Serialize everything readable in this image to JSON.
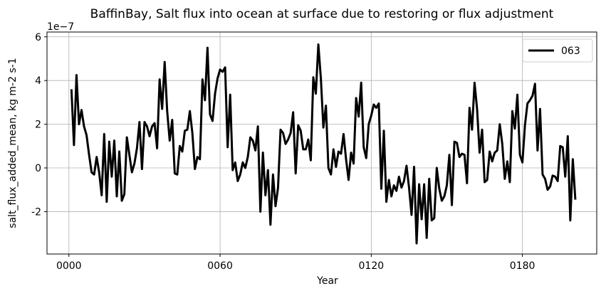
{
  "chart_data": {
    "type": "line",
    "title": "BaffinBay, Salt flux into ocean at surface due to restoring or flux adjustment",
    "xlabel": "Year",
    "ylabel": "salt_flux_added_mean, kg m-2 s-1",
    "offset_text": "1e−7",
    "x": [
      1,
      2,
      3,
      4,
      5,
      6,
      7,
      8,
      9,
      10,
      11,
      12,
      13,
      14,
      15,
      16,
      17,
      18,
      19,
      20,
      21,
      22,
      23,
      24,
      25,
      26,
      27,
      28,
      29,
      30,
      31,
      32,
      33,
      34,
      35,
      36,
      37,
      38,
      39,
      40,
      41,
      42,
      43,
      44,
      45,
      46,
      47,
      48,
      49,
      50,
      51,
      52,
      53,
      54,
      55,
      56,
      57,
      58,
      59,
      60,
      61,
      62,
      63,
      64,
      65,
      66,
      67,
      68,
      69,
      70,
      71,
      72,
      73,
      74,
      75,
      76,
      77,
      78,
      79,
      80,
      81,
      82,
      83,
      84,
      85,
      86,
      87,
      88,
      89,
      90,
      91,
      92,
      93,
      94,
      95,
      96,
      97,
      98,
      99,
      100,
      101,
      102,
      103,
      104,
      105,
      106,
      107,
      108,
      109,
      110,
      111,
      112,
      113,
      114,
      115,
      116,
      117,
      118,
      119,
      120,
      121,
      122,
      123,
      124,
      125,
      126,
      127,
      128,
      129,
      130,
      131,
      132,
      133,
      134,
      135,
      136,
      137,
      138,
      139,
      140,
      141,
      142,
      143,
      144,
      145,
      146,
      147,
      148,
      149,
      150,
      151,
      152,
      153,
      154,
      155,
      156,
      157,
      158,
      159,
      160,
      161,
      162,
      163,
      164,
      165,
      166,
      167,
      168,
      169,
      170,
      171,
      172,
      173,
      174,
      175,
      176,
      177,
      178,
      179,
      180,
      181,
      182,
      183,
      184,
      185,
      186,
      187,
      188,
      189,
      190,
      191,
      192,
      193,
      194,
      195,
      196,
      197,
      198,
      199,
      200,
      201
    ],
    "series": [
      {
        "name": "063",
        "color": "#000000",
        "values": [
          3.6,
          1.05,
          4.25,
          2.0,
          2.65,
          1.9,
          1.5,
          0.6,
          -0.2,
          -0.3,
          0.5,
          -0.2,
          -1.25,
          1.55,
          -1.55,
          1.2,
          -0.4,
          1.25,
          -1.3,
          0.75,
          -1.5,
          -1.2,
          1.4,
          0.6,
          -0.2,
          0.2,
          0.9,
          2.1,
          -0.05,
          2.1,
          1.9,
          1.45,
          1.9,
          2.05,
          0.9,
          4.05,
          2.7,
          4.85,
          2.6,
          1.25,
          2.2,
          -0.25,
          -0.3,
          1.0,
          0.75,
          1.7,
          1.75,
          2.6,
          1.6,
          -0.05,
          0.5,
          0.4,
          4.05,
          3.1,
          5.5,
          2.45,
          2.15,
          3.4,
          4.1,
          4.5,
          4.4,
          4.6,
          0.95,
          3.35,
          -0.1,
          0.25,
          -0.6,
          -0.3,
          0.25,
          0.0,
          0.5,
          1.4,
          1.25,
          0.8,
          1.9,
          -2.0,
          0.7,
          -1.25,
          -0.1,
          -2.6,
          -0.3,
          -1.75,
          -0.9,
          1.75,
          1.6,
          1.1,
          1.3,
          1.6,
          2.55,
          -0.25,
          1.95,
          1.7,
          0.85,
          0.85,
          1.3,
          0.35,
          4.15,
          3.4,
          5.65,
          4.1,
          1.85,
          2.85,
          0.0,
          -0.3,
          0.85,
          0.05,
          0.75,
          0.65,
          1.55,
          0.4,
          -0.55,
          0.7,
          0.2,
          3.2,
          2.35,
          3.9,
          0.95,
          0.45,
          2.0,
          2.4,
          2.9,
          2.75,
          2.95,
          -0.95,
          1.7,
          -1.55,
          -0.55,
          -1.3,
          -0.8,
          -1.05,
          -0.4,
          -0.9,
          -0.6,
          0.1,
          -0.9,
          -2.15,
          0.05,
          -3.45,
          -0.75,
          -2.35,
          -0.75,
          -3.2,
          -0.5,
          -2.4,
          -2.3,
          0.0,
          -0.95,
          -1.5,
          -1.3,
          -0.8,
          0.6,
          -1.7,
          1.2,
          1.15,
          0.5,
          0.65,
          0.6,
          -0.7,
          2.75,
          1.75,
          3.9,
          2.7,
          0.7,
          1.75,
          -0.65,
          -0.55,
          0.75,
          0.3,
          0.7,
          0.8,
          2.0,
          1.1,
          -0.5,
          0.3,
          -0.65,
          2.6,
          1.8,
          3.35,
          0.6,
          0.25,
          1.95,
          2.95,
          3.1,
          3.3,
          3.85,
          0.8,
          2.7,
          -0.3,
          -0.5,
          -1.0,
          -0.85,
          -0.35,
          -0.4,
          -0.6,
          1.0,
          0.95,
          -0.4,
          1.45,
          -2.4,
          0.4,
          -1.45
        ]
      }
    ],
    "xlim": [
      -8.7,
      209.5
    ],
    "ylim": [
      -3.94,
      6.22
    ],
    "xticks": [
      {
        "value": 0,
        "label": "0000"
      },
      {
        "value": 60,
        "label": "0060"
      },
      {
        "value": 120,
        "label": "0120"
      },
      {
        "value": 180,
        "label": "0180"
      }
    ],
    "yticks": [
      -2,
      0,
      2,
      4,
      6
    ],
    "grid": true,
    "legend": "upper right"
  }
}
